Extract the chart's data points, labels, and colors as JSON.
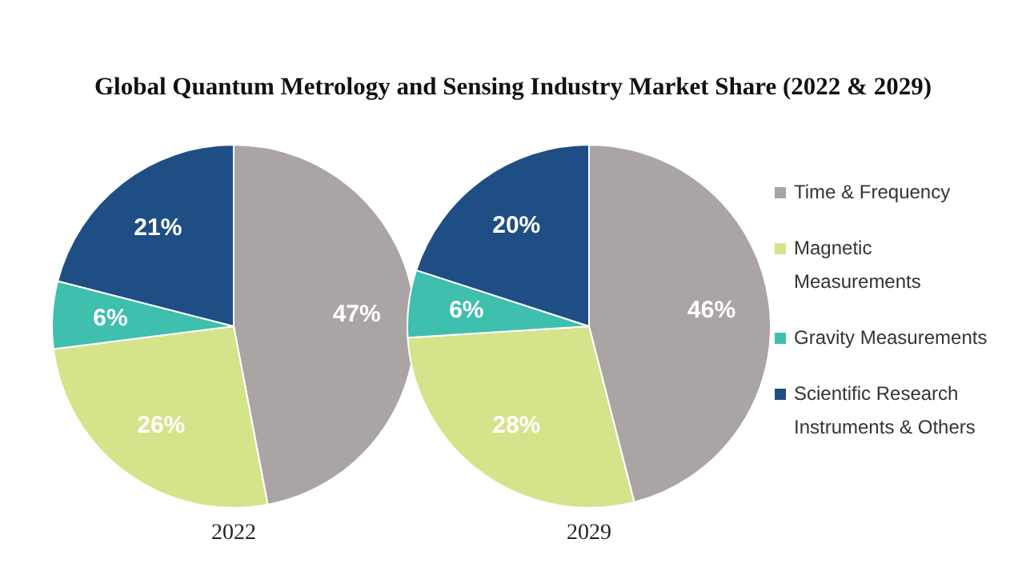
{
  "chart_data": {
    "type": "pie",
    "title": "Global Quantum Metrology and Sensing Industry Market Share (2022 & 2029)",
    "categories": [
      "Time & Frequency",
      "Magnetic Measurements",
      "Gravity Measurements",
      "Scientific Research Instruments & Others"
    ],
    "colors": [
      "#aaa5a4",
      "#d5e38b",
      "#3fbfae",
      "#1f4e85"
    ],
    "legend": "right",
    "series": [
      {
        "name": "2022",
        "values": [
          47,
          26,
          6,
          21
        ],
        "value_labels": [
          "47%",
          "26%",
          "6%",
          "21%"
        ]
      },
      {
        "name": "2029",
        "values": [
          46,
          28,
          6,
          20
        ],
        "value_labels": [
          "46%",
          "28%",
          "6%",
          "20%"
        ]
      }
    ]
  }
}
